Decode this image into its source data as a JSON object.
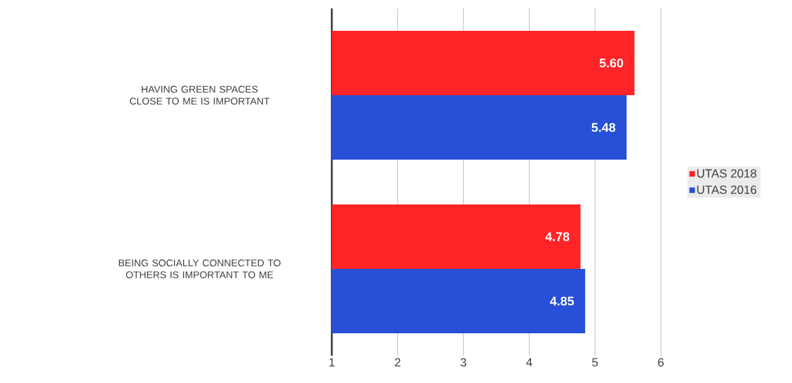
{
  "chart_data": {
    "type": "bar",
    "orientation": "horizontal",
    "categories": [
      "HAVING GREEN SPACES CLOSE TO ME IS IMPORTANT",
      "BEING SOCIALLY CONNECTED TO OTHERS IS IMPORTANT TO ME"
    ],
    "series": [
      {
        "name": "UTAS 2018",
        "color": "#ff2428",
        "values": [
          5.6,
          4.78
        ],
        "value_labels": [
          "5.60",
          "4.78"
        ]
      },
      {
        "name": "UTAS 2016",
        "color": "#2750d6",
        "values": [
          5.48,
          4.85
        ],
        "value_labels": [
          "5.48",
          "4.85"
        ]
      }
    ],
    "xlim": [
      1,
      6
    ],
    "xticks": [
      1,
      2,
      3,
      4,
      5,
      6
    ],
    "grid": "x",
    "legend": "right"
  }
}
